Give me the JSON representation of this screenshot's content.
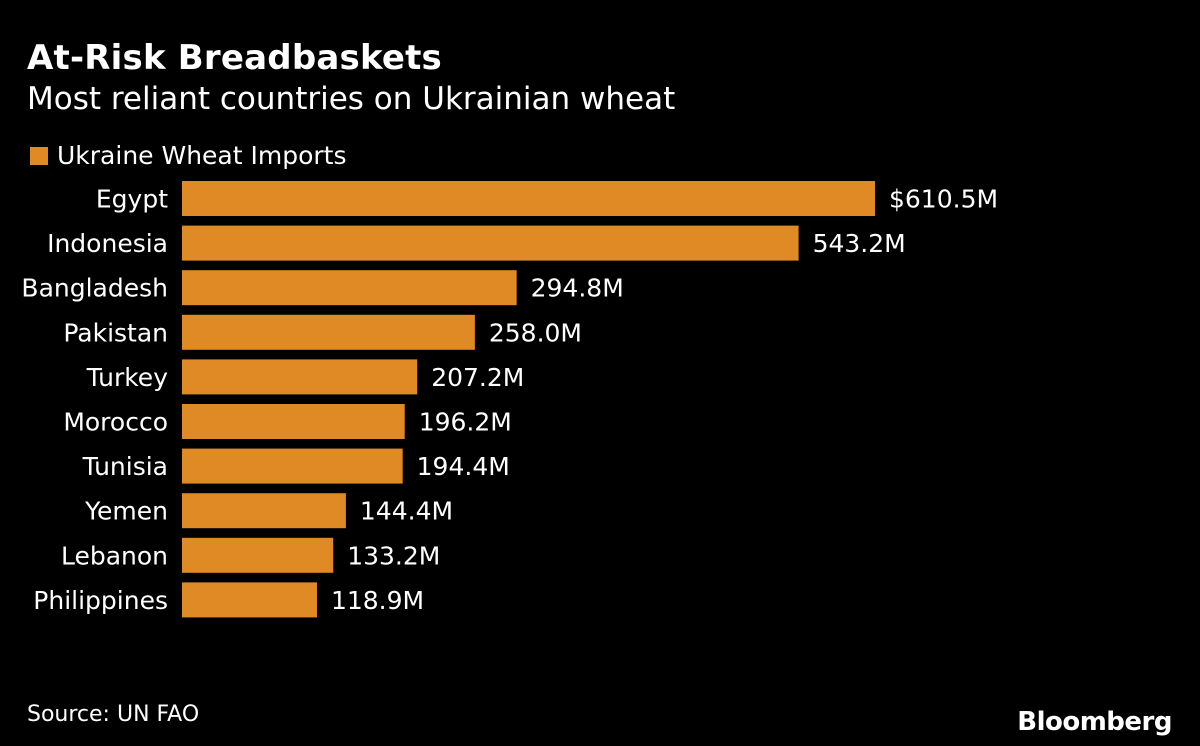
{
  "title": "At-Risk Breadbaskets",
  "subtitle": "Most reliant countries on Ukrainian wheat",
  "source": "Source: UN FAO",
  "brand": "Bloomberg",
  "colors": {
    "bar": "#E08A25",
    "background": "#000000",
    "text": "#FFFFFF"
  },
  "chart_data": {
    "type": "bar",
    "orientation": "horizontal",
    "title": "At-Risk Breadbaskets",
    "subtitle": "Most reliant countries on Ukrainian wheat",
    "categories": [
      "Egypt",
      "Indonesia",
      "Bangladesh",
      "Pakistan",
      "Turkey",
      "Morocco",
      "Tunisia",
      "Yemen",
      "Lebanon",
      "Philippines"
    ],
    "series": [
      {
        "name": "Ukraine Wheat Imports",
        "values": [
          610.5,
          543.2,
          294.8,
          258.0,
          207.2,
          196.2,
          194.4,
          144.4,
          133.2,
          118.9
        ],
        "labels": [
          "$610.5M",
          "543.2M",
          "294.8M",
          "258.0M",
          "207.2M",
          "196.2M",
          "194.4M",
          "144.4M",
          "133.2M",
          "118.9M"
        ]
      }
    ],
    "xlim": [
      0,
      610.5
    ],
    "legend": "top-left",
    "grid": false
  }
}
